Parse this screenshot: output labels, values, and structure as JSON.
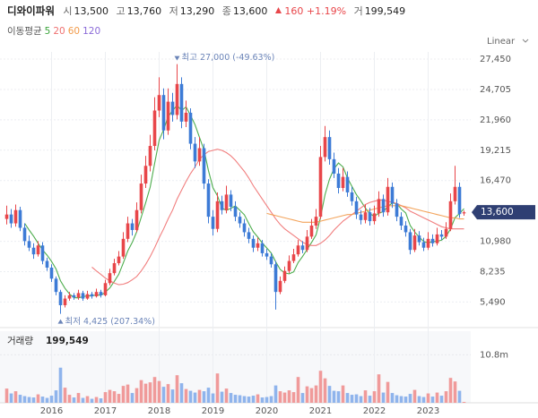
{
  "header": {
    "name": "디와이파워",
    "items": [
      {
        "label": "시",
        "value": "13,500"
      },
      {
        "label": "고",
        "value": "13,760"
      },
      {
        "label": "저",
        "value": "13,290"
      },
      {
        "label": "종",
        "value": "13,600"
      }
    ],
    "change": "160 +1.19%",
    "volume_label": "거",
    "volume_value": "199,549"
  },
  "chart_data": {
    "type": "candlestick",
    "scale_label": "Linear",
    "ma_label": "이동평균",
    "categories": [
      null,
      null,
      null,
      null,
      null,
      null,
      null,
      null,
      null,
      null,
      "2016",
      null,
      null,
      null,
      null,
      null,
      null,
      null,
      null,
      null,
      null,
      null,
      "2017",
      null,
      null,
      null,
      null,
      null,
      null,
      null,
      null,
      null,
      null,
      null,
      "2018",
      null,
      null,
      null,
      null,
      null,
      null,
      null,
      null,
      null,
      null,
      null,
      "2019",
      null,
      null,
      null,
      null,
      null,
      null,
      null,
      null,
      null,
      null,
      null,
      "2020",
      null,
      null,
      null,
      null,
      null,
      null,
      null,
      null,
      null,
      null,
      null,
      "2021",
      null,
      null,
      null,
      null,
      null,
      null,
      null,
      null,
      null,
      null,
      null,
      "2022",
      null,
      null,
      null,
      null,
      null,
      null,
      null,
      null,
      null,
      null,
      null,
      "2023",
      null,
      null,
      null,
      null,
      null,
      null,
      null,
      null
    ],
    "up_color": "#e8464a",
    "down_color": "#3d7bd6",
    "candles": [
      [
        13000,
        14200,
        12500,
        13400
      ],
      [
        13400,
        13900,
        12200,
        12600
      ],
      [
        12600,
        14300,
        12300,
        13800
      ],
      [
        13800,
        14100,
        11900,
        12200
      ],
      [
        12200,
        12600,
        10600,
        11000
      ],
      [
        11000,
        11500,
        10100,
        10400
      ],
      [
        10400,
        10800,
        9400,
        9800
      ],
      [
        9800,
        11000,
        9600,
        10600
      ],
      [
        10600,
        10900,
        8900,
        9200
      ],
      [
        9200,
        9500,
        8300,
        8600
      ],
      [
        8600,
        8900,
        7300,
        7600
      ],
      [
        7600,
        7800,
        6100,
        6400
      ],
      [
        6400,
        6600,
        4425,
        5200
      ],
      [
        5200,
        6100,
        5000,
        5800
      ],
      [
        5800,
        6400,
        5600,
        6100
      ],
      [
        6100,
        6300,
        5700,
        5900
      ],
      [
        5900,
        6600,
        5700,
        6300
      ],
      [
        6300,
        6500,
        5600,
        5800
      ],
      [
        5800,
        6500,
        5700,
        6200
      ],
      [
        6200,
        6400,
        5800,
        6000
      ],
      [
        6000,
        6700,
        5900,
        6400
      ],
      [
        6400,
        6600,
        5900,
        6100
      ],
      [
        6100,
        7500,
        6000,
        7200
      ],
      [
        7200,
        8500,
        7000,
        8100
      ],
      [
        8100,
        9400,
        7900,
        9000
      ],
      [
        9000,
        10100,
        8800,
        9600
      ],
      [
        9600,
        11800,
        9400,
        11200
      ],
      [
        11200,
        13200,
        10900,
        12600
      ],
      [
        12600,
        13000,
        11500,
        12000
      ],
      [
        12000,
        14500,
        11800,
        13800
      ],
      [
        13800,
        17000,
        13500,
        16200
      ],
      [
        16200,
        18700,
        15800,
        17800
      ],
      [
        17800,
        20600,
        17300,
        19600
      ],
      [
        19600,
        24000,
        19200,
        22800
      ],
      [
        22800,
        25800,
        22200,
        24200
      ],
      [
        24200,
        24800,
        20200,
        21000
      ],
      [
        21000,
        24800,
        20600,
        23600
      ],
      [
        23600,
        24400,
        21800,
        22400
      ],
      [
        22400,
        27000,
        22000,
        25200
      ],
      [
        25200,
        25800,
        21200,
        21800
      ],
      [
        21800,
        23700,
        21300,
        22600
      ],
      [
        22600,
        23000,
        19300,
        19800
      ],
      [
        19800,
        20400,
        17600,
        18200
      ],
      [
        18200,
        20400,
        17800,
        19400
      ],
      [
        19400,
        19800,
        15700,
        16200
      ],
      [
        16200,
        16600,
        12600,
        13200
      ],
      [
        13200,
        13800,
        11500,
        12100
      ],
      [
        12100,
        15400,
        11800,
        14600
      ],
      [
        14600,
        15100,
        13400,
        13800
      ],
      [
        13800,
        16000,
        13500,
        15200
      ],
      [
        15200,
        15600,
        13700,
        14100
      ],
      [
        14100,
        14600,
        12800,
        13200
      ],
      [
        13200,
        13600,
        12200,
        12600
      ],
      [
        12600,
        13000,
        11400,
        11800
      ],
      [
        11800,
        12200,
        10800,
        11200
      ],
      [
        11200,
        11500,
        10000,
        10400
      ],
      [
        10400,
        11300,
        10100,
        10800
      ],
      [
        10800,
        11100,
        9600,
        9900
      ],
      [
        9900,
        10300,
        9300,
        9600
      ],
      [
        9600,
        9900,
        8600,
        8900
      ],
      [
        8900,
        9200,
        4800,
        6400
      ],
      [
        6400,
        7800,
        6200,
        7400
      ],
      [
        7400,
        8700,
        7200,
        8300
      ],
      [
        8300,
        9700,
        8100,
        9200
      ],
      [
        9200,
        10300,
        9000,
        9800
      ],
      [
        9800,
        11100,
        9600,
        10600
      ],
      [
        10600,
        11000,
        9900,
        10200
      ],
      [
        10200,
        12000,
        10000,
        11400
      ],
      [
        11400,
        13000,
        11200,
        12400
      ],
      [
        12400,
        13900,
        12100,
        13200
      ],
      [
        13200,
        19600,
        13000,
        18600
      ],
      [
        18600,
        21400,
        18200,
        20400
      ],
      [
        20400,
        21000,
        17900,
        18400
      ],
      [
        18400,
        19000,
        16700,
        17100
      ],
      [
        17100,
        17600,
        15300,
        15800
      ],
      [
        15800,
        17600,
        15500,
        16800
      ],
      [
        16800,
        17300,
        15000,
        15400
      ],
      [
        15400,
        15900,
        14200,
        14600
      ],
      [
        14600,
        15000,
        13000,
        13400
      ],
      [
        13400,
        13800,
        12500,
        12900
      ],
      [
        12900,
        14300,
        12600,
        13600
      ],
      [
        13600,
        14000,
        12400,
        12800
      ],
      [
        12800,
        14200,
        12500,
        13500
      ],
      [
        13500,
        15500,
        13200,
        14800
      ],
      [
        14800,
        15200,
        13200,
        13600
      ],
      [
        13600,
        16700,
        13300,
        15900
      ],
      [
        15900,
        16300,
        14000,
        14400
      ],
      [
        14400,
        14800,
        12800,
        13200
      ],
      [
        13200,
        13600,
        12000,
        12400
      ],
      [
        12400,
        12800,
        11400,
        11800
      ],
      [
        11800,
        12100,
        9800,
        10200
      ],
      [
        10200,
        12100,
        10000,
        11500
      ],
      [
        11500,
        11900,
        10600,
        10900
      ],
      [
        10900,
        11300,
        10100,
        10400
      ],
      [
        10400,
        11800,
        10200,
        11200
      ],
      [
        11200,
        11600,
        10500,
        10800
      ],
      [
        10800,
        12200,
        10600,
        11600
      ],
      [
        11600,
        12000,
        11100,
        11400
      ],
      [
        11400,
        12700,
        11200,
        12100
      ],
      [
        12100,
        15300,
        11900,
        14600
      ],
      [
        14600,
        17800,
        14300,
        15900
      ],
      [
        15900,
        16300,
        13100,
        13440
      ],
      [
        13500,
        13760,
        13290,
        13600
      ]
    ],
    "last_label": "13,600",
    "high_label": "최고 27,000 (-49.63%)",
    "low_label": "최저 4,425 (207.34%)",
    "series": [
      {
        "name": "5",
        "color": "#3aa43a",
        "values": [
          null,
          null,
          null,
          null,
          12600,
          12000,
          11440,
          10800,
          10200,
          9720,
          9160,
          8480,
          7400,
          6720,
          6220,
          5880,
          5860,
          5980,
          6060,
          6040,
          6140,
          6100,
          6380,
          6760,
          7360,
          8000,
          9020,
          10100,
          10880,
          11840,
          13160,
          14480,
          15880,
          18040,
          20120,
          21080,
          22240,
          22800,
          23280,
          22800,
          23120,
          22360,
          21520,
          20360,
          19240,
          17360,
          15820,
          15100,
          13980,
          13780,
          13960,
          14180,
          13780,
          13380,
          12580,
          11840,
          11360,
          10820,
          10380,
          9920,
          9120,
          8440,
          8120,
          8040,
          8220,
          9060,
          9620,
          10240,
          10880,
          11560,
          13160,
          15200,
          16600,
          17540,
          18060,
          17700,
          16700,
          15940,
          15200,
          14620,
          13980,
          13460,
          13240,
          13520,
          13660,
          14120,
          14440,
          14380,
          13900,
          13540,
          12400,
          11820,
          11360,
          10960,
          10840,
          10960,
          10980,
          11080,
          11420,
          12100,
          13120,
          13490,
          13930
        ]
      },
      {
        "name": "20",
        "color": "#ef7070",
        "values": [
          null,
          null,
          null,
          null,
          null,
          null,
          null,
          null,
          null,
          null,
          null,
          null,
          null,
          null,
          null,
          null,
          null,
          null,
          null,
          8650,
          8300,
          7980,
          7650,
          7400,
          7200,
          7050,
          7100,
          7250,
          7500,
          7800,
          8300,
          8900,
          9600,
          10400,
          11300,
          12100,
          13000,
          13800,
          14800,
          15600,
          16400,
          17100,
          17700,
          18400,
          18800,
          19100,
          19200,
          19300,
          19200,
          19000,
          18700,
          18300,
          17800,
          17300,
          16700,
          16000,
          15400,
          14800,
          14200,
          13600,
          13000,
          12500,
          12100,
          11800,
          11500,
          11200,
          10900,
          10700,
          10600,
          10600,
          10800,
          11100,
          11500,
          12000,
          12400,
          12800,
          13100,
          13400,
          13700,
          14000,
          14300,
          14500,
          14600,
          14700,
          14700,
          14600,
          14500,
          14400,
          14200,
          14000,
          13700,
          13500,
          13300,
          13100,
          12900,
          12700,
          12500,
          12300,
          12200,
          12100,
          12100,
          12100,
          12100
        ]
      },
      {
        "name": "60",
        "color": "#f29a4a",
        "values": [
          null,
          null,
          null,
          null,
          null,
          null,
          null,
          null,
          null,
          null,
          null,
          null,
          null,
          null,
          null,
          null,
          null,
          null,
          null,
          null,
          null,
          null,
          null,
          null,
          null,
          null,
          null,
          null,
          null,
          null,
          null,
          null,
          null,
          null,
          null,
          null,
          null,
          null,
          null,
          null,
          null,
          null,
          null,
          null,
          null,
          null,
          null,
          null,
          null,
          null,
          null,
          null,
          null,
          null,
          null,
          null,
          null,
          null,
          13500,
          13400,
          13300,
          13200,
          13100,
          13000,
          12900,
          12800,
          12700,
          12700,
          12700,
          12700,
          12800,
          12900,
          13000,
          13100,
          13200,
          13300,
          13400,
          13400,
          13500,
          13600,
          13700,
          13800,
          13900,
          14000,
          14100,
          14200,
          14200,
          14200,
          14200,
          14100,
          14000,
          13900,
          13800,
          13700,
          13600,
          13500,
          13400,
          13300,
          13200,
          13100,
          13100,
          13000,
          13000
        ]
      },
      {
        "name": "120",
        "color": "#8a6ad8",
        "values": [
          null,
          null,
          null,
          null,
          null,
          null,
          null,
          null,
          null,
          null,
          null,
          null,
          null,
          null,
          null,
          null,
          null,
          null,
          null,
          null,
          null,
          null,
          null,
          null,
          null,
          null,
          null,
          null,
          null,
          null,
          null,
          null,
          null,
          null,
          null,
          null,
          null,
          null,
          null,
          null,
          null,
          null,
          null,
          null,
          null,
          null,
          null,
          null,
          null,
          null,
          null,
          null,
          null,
          null,
          null,
          null,
          null,
          null,
          null,
          null,
          null,
          null,
          null,
          null,
          null,
          null,
          null,
          null,
          null,
          null,
          null,
          null,
          null,
          null,
          null,
          null,
          null,
          null,
          null,
          null,
          null,
          null,
          null,
          null,
          null,
          null,
          null,
          null,
          null,
          null,
          null,
          null,
          null,
          null,
          null,
          null,
          null,
          null,
          null,
          null,
          null,
          null,
          null
        ]
      }
    ],
    "ylim": [
      3500,
      28100
    ],
    "yticks": [
      {
        "value": 5490,
        "label": "5,490"
      },
      {
        "value": 8235,
        "label": "8,235"
      },
      {
        "value": 10980,
        "label": "10,980"
      },
      {
        "value": 16470,
        "label": "16,470"
      },
      {
        "value": 19215,
        "label": "19,215"
      },
      {
        "value": 21960,
        "label": "21,960"
      },
      {
        "value": 24705,
        "label": "24,705"
      },
      {
        "value": 27450,
        "label": "27,450"
      }
    ],
    "grid": true,
    "volume": {
      "title": "거래량",
      "last_label": "199,549",
      "up_color": "#f09a9a",
      "down_color": "#8fb4ec",
      "values": [
        3200000,
        2100000,
        2600000,
        1800000,
        1500000,
        1300000,
        1200000,
        1900000,
        1400000,
        1100000,
        1600000,
        2800000,
        7900000,
        3400000,
        1800000,
        1200000,
        2200000,
        1100000,
        1500000,
        900000,
        1300000,
        1000000,
        2400000,
        2900000,
        2600000,
        2000000,
        3800000,
        4100000,
        2200000,
        3300000,
        5100000,
        4300000,
        4600000,
        5800000,
        4900000,
        3600000,
        4200000,
        3000000,
        6200000,
        4400000,
        3100000,
        2700000,
        2300000,
        2900000,
        2600000,
        3400000,
        2100000,
        6600000,
        2500000,
        3200000,
        2200000,
        1800000,
        1700000,
        1500000,
        1400000,
        1600000,
        1900000,
        1200000,
        1300000,
        1500000,
        3900000,
        2600000,
        2300000,
        2800000,
        2400000,
        5800000,
        2200000,
        3700000,
        3300000,
        3900000,
        7200000,
        5500000,
        3800000,
        2700000,
        2600000,
        3900000,
        2200000,
        1800000,
        1900000,
        1500000,
        2800000,
        1600000,
        2600000,
        6400000,
        2300000,
        4700000,
        2200000,
        1700000,
        1500000,
        1400000,
        2000000,
        2900000,
        1500000,
        1300000,
        2100000,
        1400000,
        2300000,
        1600000,
        2600000,
        5600000,
        4800000,
        2700000,
        199549
      ],
      "ylim": [
        0,
        15700000
      ],
      "yticks": [
        {
          "value": 10800000,
          "label": "10.8m"
        }
      ]
    }
  }
}
